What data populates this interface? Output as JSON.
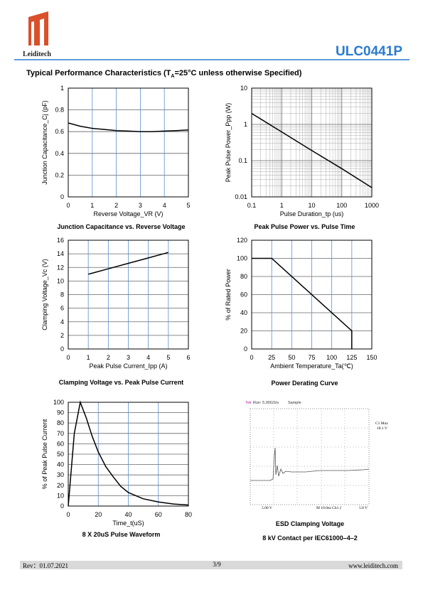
{
  "header": {
    "brand": "Leiditech",
    "part": "ULC0441P"
  },
  "section_title": {
    "pre": "Typical Performance Characteristics (T",
    "sub": "A",
    "post": "=25°C unless otherwise Specified)"
  },
  "chart_data": [
    {
      "type": "line",
      "title": "Junction Capacitance vs. Reverse Voltage",
      "xlabel": "Reverse Voltage_VR (V)",
      "ylabel": "Junction Capacitance_Cj (pF)",
      "x": [
        0,
        0.5,
        1,
        1.5,
        2,
        2.5,
        3,
        3.5,
        4,
        4.5,
        5
      ],
      "values": [
        0.68,
        0.65,
        0.63,
        0.62,
        0.61,
        0.605,
        0.6,
        0.6,
        0.605,
        0.61,
        0.615
      ],
      "xlim": [
        0,
        5
      ],
      "ylim": [
        0,
        1
      ],
      "xticks": [
        0,
        1,
        2,
        3,
        4,
        5
      ],
      "yticks": [
        0,
        0.2,
        0.4,
        0.6,
        0.8,
        1
      ],
      "grid": true,
      "grid_color": "#5b8fd6",
      "color": "#000000"
    },
    {
      "type": "line",
      "title": "Peak Pulse Power vs. Pulse Time",
      "xlabel": "Pulse Duration_tp (us)",
      "ylabel": "Peak Pulse Power_Ppp (W)",
      "x": [
        0.1,
        1,
        10,
        100,
        1000
      ],
      "values": [
        2,
        0.62,
        0.19,
        0.06,
        0.018
      ],
      "xlim": [
        0.1,
        1000
      ],
      "ylim": [
        0.01,
        10
      ],
      "xticks": [
        0.1,
        1,
        10,
        100,
        1000
      ],
      "yticks": [
        0.01,
        0.1,
        1,
        10
      ],
      "log_x": true,
      "log_y": true,
      "grid": true,
      "grid_color": "#999999",
      "color": "#000000"
    },
    {
      "type": "line",
      "title": "Clamping Voltage vs. Peak Pulse Current",
      "xlabel": "Peak Pulse Current_Ipp  (A)",
      "ylabel": "Clamping Voltage_Vc (V)",
      "x": [
        1,
        2,
        3,
        4,
        5
      ],
      "values": [
        11,
        11.8,
        12.6,
        13.4,
        14.2
      ],
      "xlim": [
        0,
        6
      ],
      "ylim": [
        0,
        16
      ],
      "xticks": [
        0,
        1,
        2,
        3,
        4,
        5,
        6
      ],
      "yticks": [
        0,
        2,
        4,
        6,
        8,
        10,
        12,
        14,
        16
      ],
      "grid": true,
      "grid_color": "#5b8fd6",
      "color": "#000000"
    },
    {
      "type": "line",
      "title": "Power Derating Curve",
      "xlabel": "Ambient  Temperature_Ta(℃)",
      "ylabel": "% of Rated Power",
      "x": [
        0,
        25,
        125,
        125
      ],
      "values": [
        100,
        100,
        20,
        0
      ],
      "xlim": [
        0,
        150
      ],
      "ylim": [
        0,
        120
      ],
      "xticks": [
        0,
        25,
        50,
        75,
        100,
        125,
        150
      ],
      "yticks": [
        0,
        20,
        40,
        60,
        80,
        100,
        120
      ],
      "grid": true,
      "grid_color": "#5b8fd6",
      "color": "#000000"
    },
    {
      "type": "line",
      "title": "8 X 20uS Pulse Waveform",
      "xlabel": "Time_t(uS)",
      "ylabel": "% of Peak Pulse Current",
      "x": [
        0,
        4,
        8,
        12,
        16,
        20,
        25,
        30,
        35,
        40,
        45,
        50,
        60,
        70,
        80
      ],
      "values": [
        0,
        70,
        100,
        85,
        67,
        52,
        38,
        28,
        19,
        13,
        10,
        7,
        4,
        2,
        1
      ],
      "xlim": [
        0,
        80
      ],
      "ylim": [
        0,
        100
      ],
      "xticks": [
        0,
        20,
        40,
        60,
        80
      ],
      "yticks": [
        0,
        10,
        20,
        30,
        40,
        50,
        60,
        70,
        80,
        90,
        100
      ],
      "grid": true,
      "grid_color": "#5b8fd6",
      "color": "#000000"
    }
  ],
  "scope": {
    "tek": "Tek",
    "run": "Run: 5.00GS/s",
    "mode": "Sample",
    "max_label": "C1 Max",
    "max_value": "18.1 V",
    "ch_scale": "5.00 V",
    "time_scale": "M 10.0ns  Ch1  ƒ",
    "trig": "5.0 V",
    "title": "ESD Clamping Voltage",
    "subtitle": "8 kV Contact per IEC61000–4–2"
  },
  "footer": {
    "rev": "Rev：01.07.2021",
    "page": "3/9",
    "web": "www.leiditech.com"
  }
}
